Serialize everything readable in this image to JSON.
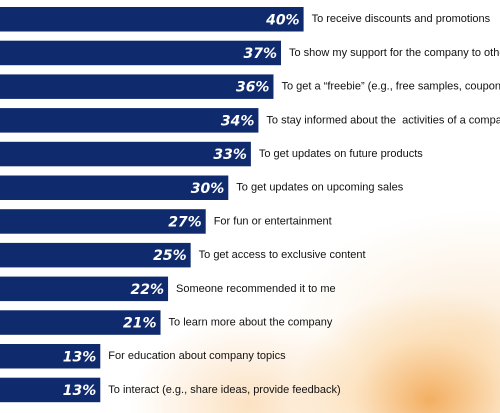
{
  "chart_data": {
    "type": "bar",
    "orientation": "horizontal",
    "categories": [
      "To receive discounts and promotions",
      "To show my support for the company to others",
      "To get a “freebie” (e.g., free samples, coupon)",
      "To stay informed about the  activities of a company",
      "To get updates on future products",
      "To get updates on upcoming sales",
      "For fun or entertainment",
      "To get access to exclusive content",
      "Someone recommended it to me",
      "To learn more about the company",
      "For education about company topics",
      "To interact (e.g., share ideas, provide feedback)"
    ],
    "values": [
      40,
      37,
      36,
      34,
      33,
      30,
      27,
      25,
      22,
      21,
      13,
      13
    ],
    "value_labels": [
      "40%",
      "37%",
      "36%",
      "34%",
      "33%",
      "30%",
      "27%",
      "25%",
      "22%",
      "21%",
      "13%",
      "13%"
    ],
    "bar_color": "#102a6e",
    "label_color": "#ffffff",
    "grid": false,
    "legend": "none"
  }
}
